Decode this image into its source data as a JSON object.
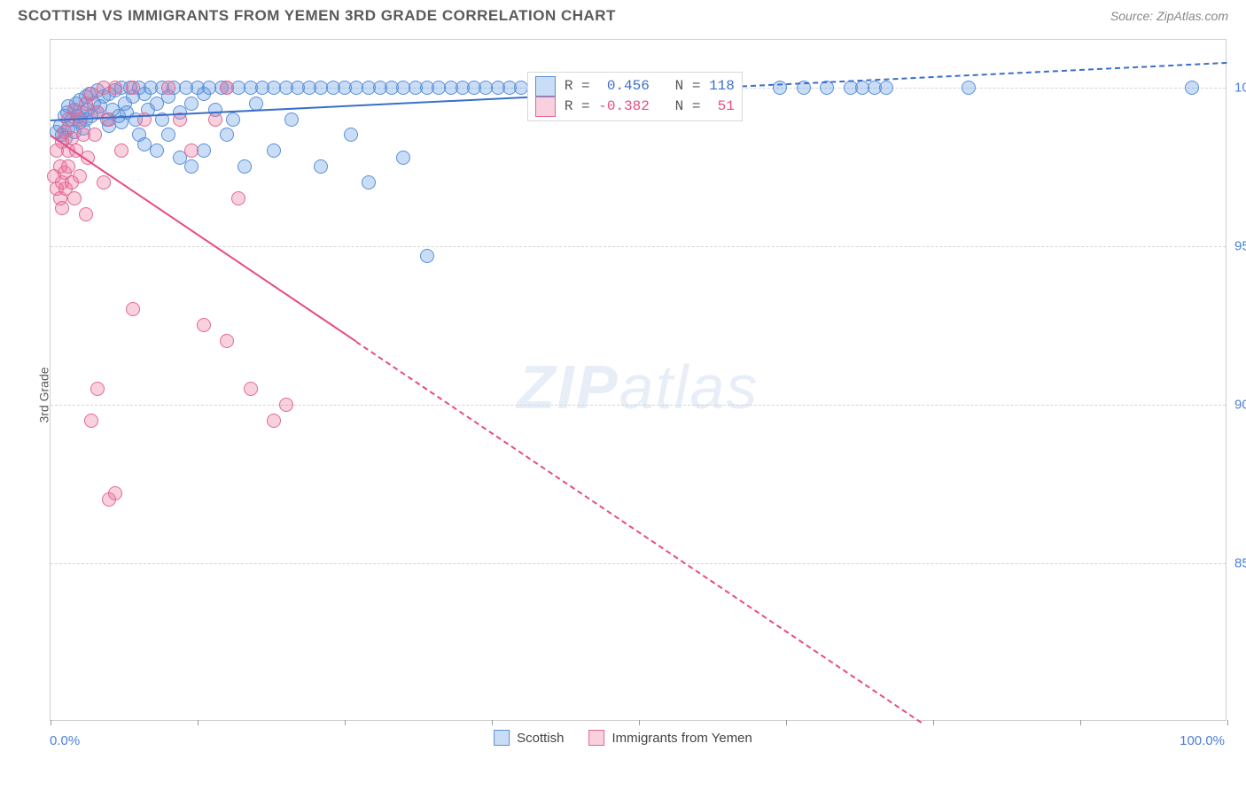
{
  "title": "SCOTTISH VS IMMIGRANTS FROM YEMEN 3RD GRADE CORRELATION CHART",
  "source": "Source: ZipAtlas.com",
  "ylabel": "3rd Grade",
  "watermark_bold": "ZIP",
  "watermark_rest": "atlas",
  "chart": {
    "type": "scatter",
    "xlim": [
      0,
      100
    ],
    "ylim": [
      80,
      101.5
    ],
    "yticks": [
      {
        "v": 85.0,
        "label": "85.0%"
      },
      {
        "v": 90.0,
        "label": "90.0%"
      },
      {
        "v": 95.0,
        "label": "95.0%"
      },
      {
        "v": 100.0,
        "label": "100.0%"
      }
    ],
    "xtick_positions": [
      0,
      12.5,
      25,
      37.5,
      50,
      62.5,
      75,
      87.5,
      100
    ],
    "xaxis_left_label": "0.0%",
    "xaxis_right_label": "100.0%",
    "background_color": "#ffffff",
    "grid_color": "#d5d5d5",
    "marker_radius": 8,
    "marker_opacity": 0.35,
    "series": [
      {
        "name": "Scottish",
        "color_fill": "rgba(90, 150, 230, 0.32)",
        "color_stroke": "#5a8fd6",
        "trend_color": "#3b6fc9",
        "trend": {
          "x1": 0,
          "y1": 99.0,
          "x2": 100,
          "y2": 100.8,
          "dash_after_x": 58
        },
        "R": "0.456",
        "N": "118",
        "points": [
          [
            0.5,
            98.6
          ],
          [
            0.8,
            98.8
          ],
          [
            1.0,
            98.5
          ],
          [
            1.2,
            99.1
          ],
          [
            1.3,
            98.4
          ],
          [
            1.4,
            99.2
          ],
          [
            1.5,
            98.7
          ],
          [
            1.5,
            99.4
          ],
          [
            1.8,
            99.0
          ],
          [
            2.0,
            99.3
          ],
          [
            2.0,
            98.6
          ],
          [
            2.2,
            99.5
          ],
          [
            2.3,
            99.1
          ],
          [
            2.5,
            98.9
          ],
          [
            2.5,
            99.6
          ],
          [
            2.7,
            99.2
          ],
          [
            2.8,
            98.7
          ],
          [
            3.0,
            99.7
          ],
          [
            3.0,
            99.0
          ],
          [
            3.2,
            99.3
          ],
          [
            3.3,
            99.8
          ],
          [
            3.5,
            99.1
          ],
          [
            3.7,
            99.5
          ],
          [
            4.0,
            99.2
          ],
          [
            4.0,
            99.9
          ],
          [
            4.2,
            99.4
          ],
          [
            4.5,
            99.7
          ],
          [
            4.8,
            99.0
          ],
          [
            5.0,
            99.8
          ],
          [
            5.0,
            98.8
          ],
          [
            5.3,
            99.3
          ],
          [
            5.5,
            99.9
          ],
          [
            5.8,
            99.1
          ],
          [
            6.0,
            100.0
          ],
          [
            6.0,
            98.9
          ],
          [
            6.3,
            99.5
          ],
          [
            6.5,
            99.2
          ],
          [
            6.8,
            100.0
          ],
          [
            7.0,
            99.7
          ],
          [
            7.2,
            99.0
          ],
          [
            7.5,
            100.0
          ],
          [
            7.5,
            98.5
          ],
          [
            8.0,
            99.8
          ],
          [
            8.0,
            98.2
          ],
          [
            8.3,
            99.3
          ],
          [
            8.5,
            100.0
          ],
          [
            9.0,
            99.5
          ],
          [
            9.0,
            98.0
          ],
          [
            9.5,
            100.0
          ],
          [
            9.5,
            99.0
          ],
          [
            10.0,
            99.7
          ],
          [
            10.0,
            98.5
          ],
          [
            10.5,
            100.0
          ],
          [
            11.0,
            99.2
          ],
          [
            11.0,
            97.8
          ],
          [
            11.5,
            100.0
          ],
          [
            12.0,
            99.5
          ],
          [
            12.0,
            97.5
          ],
          [
            12.5,
            100.0
          ],
          [
            13.0,
            99.8
          ],
          [
            13.0,
            98.0
          ],
          [
            13.5,
            100.0
          ],
          [
            14.0,
            99.3
          ],
          [
            14.5,
            100.0
          ],
          [
            15.0,
            98.5
          ],
          [
            15.0,
            100.0
          ],
          [
            15.5,
            99.0
          ],
          [
            16.0,
            100.0
          ],
          [
            16.5,
            97.5
          ],
          [
            17.0,
            100.0
          ],
          [
            17.5,
            99.5
          ],
          [
            18.0,
            100.0
          ],
          [
            19.0,
            98.0
          ],
          [
            19.0,
            100.0
          ],
          [
            20.0,
            100.0
          ],
          [
            20.5,
            99.0
          ],
          [
            21.0,
            100.0
          ],
          [
            22.0,
            100.0
          ],
          [
            23.0,
            100.0
          ],
          [
            23.0,
            97.5
          ],
          [
            24.0,
            100.0
          ],
          [
            25.0,
            100.0
          ],
          [
            25.5,
            98.5
          ],
          [
            26.0,
            100.0
          ],
          [
            27.0,
            100.0
          ],
          [
            27.0,
            97.0
          ],
          [
            28.0,
            100.0
          ],
          [
            29.0,
            100.0
          ],
          [
            30.0,
            100.0
          ],
          [
            30.0,
            97.8
          ],
          [
            31.0,
            100.0
          ],
          [
            32.0,
            100.0
          ],
          [
            32.0,
            94.7
          ],
          [
            33.0,
            100.0
          ],
          [
            34.0,
            100.0
          ],
          [
            35.0,
            100.0
          ],
          [
            36.0,
            100.0
          ],
          [
            37.0,
            100.0
          ],
          [
            38.0,
            100.0
          ],
          [
            39.0,
            100.0
          ],
          [
            40.0,
            100.0
          ],
          [
            42.0,
            100.0
          ],
          [
            44.0,
            100.0
          ],
          [
            46.0,
            100.0
          ],
          [
            48.0,
            100.0
          ],
          [
            50.0,
            100.0
          ],
          [
            52.0,
            100.0
          ],
          [
            54.0,
            100.0
          ],
          [
            58.0,
            100.0
          ],
          [
            62.0,
            100.0
          ],
          [
            64.0,
            100.0
          ],
          [
            66.0,
            100.0
          ],
          [
            68.0,
            100.0
          ],
          [
            69.0,
            100.0
          ],
          [
            70.0,
            100.0
          ],
          [
            71.0,
            100.0
          ],
          [
            78.0,
            100.0
          ],
          [
            97.0,
            100.0
          ]
        ]
      },
      {
        "name": "Immigrants from Yemen",
        "color_fill": "rgba(235, 110, 150, 0.32)",
        "color_stroke": "#e06a95",
        "trend_color": "#e84b84",
        "trend": {
          "x1": 0,
          "y1": 98.5,
          "x2": 74,
          "y2": 80.0,
          "dash_after_x": 26
        },
        "R": "-0.382",
        "N": "51",
        "points": [
          [
            0.3,
            97.2
          ],
          [
            0.5,
            98.0
          ],
          [
            0.5,
            96.8
          ],
          [
            0.8,
            97.5
          ],
          [
            0.8,
            96.5
          ],
          [
            1.0,
            98.3
          ],
          [
            1.0,
            97.0
          ],
          [
            1.0,
            96.2
          ],
          [
            1.2,
            98.6
          ],
          [
            1.2,
            97.3
          ],
          [
            1.3,
            96.8
          ],
          [
            1.5,
            98.0
          ],
          [
            1.5,
            99.0
          ],
          [
            1.5,
            97.5
          ],
          [
            1.8,
            98.4
          ],
          [
            1.8,
            97.0
          ],
          [
            2.0,
            99.3
          ],
          [
            2.0,
            96.5
          ],
          [
            2.2,
            98.0
          ],
          [
            2.5,
            99.0
          ],
          [
            2.5,
            97.2
          ],
          [
            2.8,
            98.5
          ],
          [
            3.0,
            99.5
          ],
          [
            3.0,
            96.0
          ],
          [
            3.2,
            97.8
          ],
          [
            3.5,
            99.8
          ],
          [
            3.5,
            89.5
          ],
          [
            3.8,
            98.5
          ],
          [
            4.0,
            99.2
          ],
          [
            4.0,
            90.5
          ],
          [
            4.5,
            100.0
          ],
          [
            4.5,
            97.0
          ],
          [
            5.0,
            99.0
          ],
          [
            5.0,
            87.0
          ],
          [
            5.5,
            100.0
          ],
          [
            5.5,
            87.2
          ],
          [
            6.0,
            98.0
          ],
          [
            7.0,
            100.0
          ],
          [
            7.0,
            93.0
          ],
          [
            8.0,
            99.0
          ],
          [
            10.0,
            100.0
          ],
          [
            11.0,
            99.0
          ],
          [
            12.0,
            98.0
          ],
          [
            13.0,
            92.5
          ],
          [
            14.0,
            99.0
          ],
          [
            15.0,
            100.0
          ],
          [
            15.0,
            92.0
          ],
          [
            16.0,
            96.5
          ],
          [
            17.0,
            90.5
          ],
          [
            19.0,
            89.5
          ],
          [
            20.0,
            90.0
          ]
        ]
      }
    ],
    "legend": {
      "label1": "Scottish",
      "label2": "Immigrants from Yemen"
    },
    "statbox": {
      "left_pct": 40.5,
      "top_y": 100.5
    }
  }
}
